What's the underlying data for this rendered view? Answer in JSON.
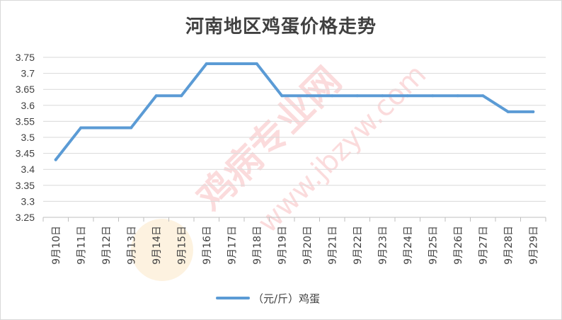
{
  "chart_data": {
    "type": "line",
    "title": "河南地区鸡蛋价格走势",
    "categories": [
      "9月10日",
      "9月11日",
      "9月12日",
      "9月13日",
      "9月14日",
      "9月15日",
      "9月16日",
      "9月17日",
      "9月18日",
      "9月19日",
      "9月20日",
      "9月21日",
      "9月22日",
      "9月23日",
      "9月24日",
      "9月25日",
      "9月26日",
      "9月27日",
      "9月28日",
      "9月29日"
    ],
    "series": [
      {
        "name": "（元/斤）鸡蛋",
        "values": [
          3.43,
          3.53,
          3.53,
          3.53,
          3.63,
          3.63,
          3.73,
          3.73,
          3.73,
          3.63,
          3.63,
          3.63,
          3.63,
          3.63,
          3.63,
          3.63,
          3.63,
          3.63,
          3.58,
          3.58
        ]
      }
    ],
    "y_ticks": [
      "3.25",
      "3.3",
      "3.35",
      "3.4",
      "3.45",
      "3.5",
      "3.55",
      "3.6",
      "3.65",
      "3.7",
      "3.75"
    ],
    "ylim": [
      3.25,
      3.75
    ],
    "grid": true,
    "legend": "bottom",
    "colors": {
      "line": "#5b9bd5",
      "grid": "#d9d9d9",
      "axis": "#bfbfbf",
      "watermark": "#e8262a"
    }
  },
  "watermark": {
    "text": "鸡病专业网",
    "url": "www.jbzyw.com"
  }
}
